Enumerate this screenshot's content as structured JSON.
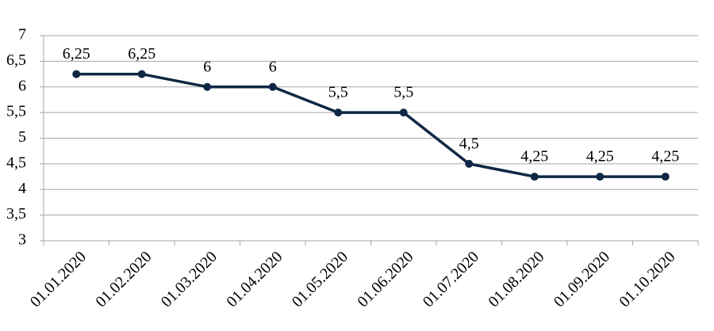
{
  "chart_data": {
    "type": "line",
    "categories": [
      "01.01.2020",
      "01.02.2020",
      "01.03.2020",
      "01.04.2020",
      "01.05.2020",
      "01.06.2020",
      "01.07.2020",
      "01.08.2020",
      "01.09.2020",
      "01.10.2020"
    ],
    "values": [
      6.25,
      6.25,
      6,
      6,
      5.5,
      5.5,
      4.5,
      4.25,
      4.25,
      4.25
    ],
    "value_labels": [
      "6,25",
      "6,25",
      "6",
      "6",
      "5,5",
      "5,5",
      "4,5",
      "4,25",
      "4,25",
      "4,25"
    ],
    "color": "#0f2744",
    "ylim": [
      3,
      7
    ],
    "yticks": [
      3,
      {
        "value": 3.5,
        "label": "3,5"
      },
      4,
      {
        "value": 4.5,
        "label": "4,5"
      },
      5,
      {
        "value": 5.5,
        "label": "5,5"
      },
      6,
      {
        "value": 6.5,
        "label": "6,5"
      },
      7
    ],
    "grid": true
  }
}
